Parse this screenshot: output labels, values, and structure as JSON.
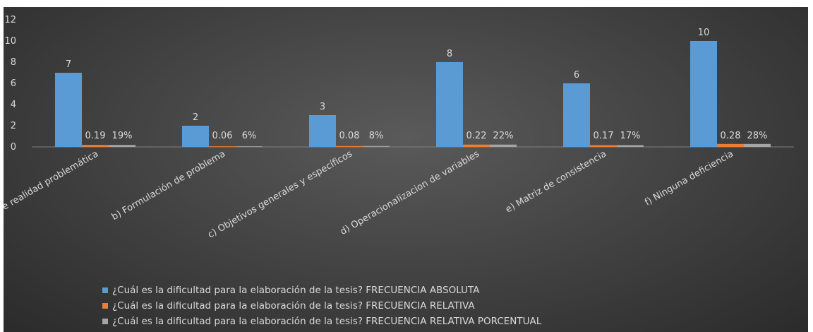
{
  "chart_data": {
    "type": "bar",
    "categories": [
      "a) Planteamiento de realidad problemática",
      "b) Formulación de problema",
      "c) Objetivos generales y específicos",
      "d) Operacionalizacion de variables",
      "e) Matriz de consistencia",
      "f) Ninguna deficiencia"
    ],
    "series": [
      {
        "name": "¿Cuál es la dificultad para la elaboración de la tesis?  FRECUENCIA ABSOLUTA",
        "values": [
          7,
          2,
          3,
          8,
          6,
          10
        ],
        "labels": [
          "7",
          "2",
          "3",
          "8",
          "6",
          "10"
        ],
        "color": "#5b9bd5"
      },
      {
        "name": "¿Cuál es la dificultad para la elaboración de la tesis?  FRECUENCIA RELATIVA",
        "values": [
          0.19,
          0.06,
          0.08,
          0.22,
          0.17,
          0.28
        ],
        "labels": [
          "0.19",
          "0.06",
          "0.08",
          "0.22",
          "0.17",
          "0.28"
        ],
        "color": "#ed7d31"
      },
      {
        "name": "¿Cuál es la dificultad para la elaboración de la tesis?  FRECUENCIA RELATIVA PORCENTUAL",
        "values": [
          0.19,
          0.06,
          0.08,
          0.22,
          0.17,
          0.28
        ],
        "labels": [
          "19%",
          "6%",
          "8%",
          "22%",
          "17%",
          "28%"
        ],
        "color": "#a5a5a5"
      }
    ],
    "y_ticks": [
      "0",
      "2",
      "4",
      "6",
      "8",
      "10",
      "12"
    ],
    "ylim": [
      0,
      12
    ],
    "grid": false,
    "legend_position": "bottom-left"
  }
}
